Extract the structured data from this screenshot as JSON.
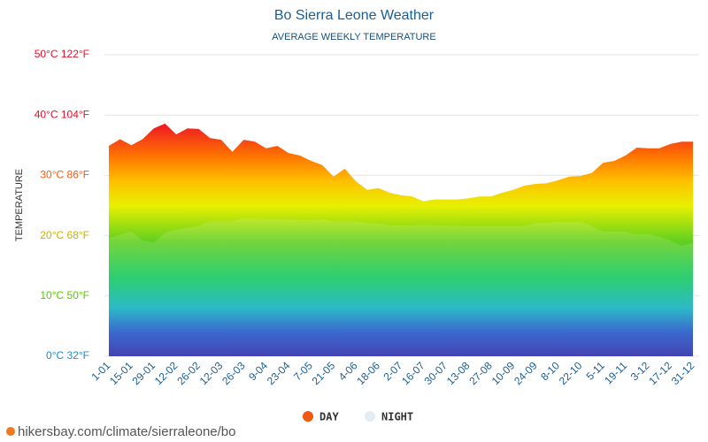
{
  "chart_data": {
    "type": "area",
    "title": "Bo Sierra Leone Weather",
    "subtitle": "AVERAGE WEEKLY TEMPERATURE",
    "y_label": "TEMPERATURE",
    "source": "hikersbay.com/climate/sierraleone/bo",
    "categories": [
      "1-01",
      null,
      "15-01",
      null,
      "29-01",
      null,
      "12-02",
      null,
      "26-02",
      null,
      "12-03",
      null,
      "26-03",
      null,
      "9-04",
      null,
      "23-04",
      null,
      "7-05",
      null,
      "21-05",
      null,
      "4-06",
      null,
      "18-06",
      null,
      "2-07",
      null,
      "16-07",
      null,
      "30-07",
      null,
      "13-08",
      null,
      "27-08",
      null,
      "10-09",
      null,
      "24-09",
      null,
      "8-10",
      null,
      "22-10",
      null,
      "5-11",
      null,
      "19-11",
      null,
      "3-12",
      null,
      "17-12",
      null,
      "31-12"
    ],
    "series": [
      {
        "name": "DAY",
        "color": "#f05a0f",
        "values": [
          34.9,
          36,
          35,
          36,
          37.8,
          38.6,
          36.8,
          37.8,
          37.7,
          36.2,
          35.9,
          33.9,
          35.9,
          35.6,
          34.5,
          34.9,
          33.7,
          33.3,
          32.4,
          31.7,
          29.8,
          31.1,
          29,
          27.6,
          27.9,
          27.1,
          26.7,
          26.5,
          25.7,
          26,
          26,
          26,
          26.2,
          26.5,
          26.5,
          27.1,
          27.6,
          28.3,
          28.6,
          28.7,
          29.2,
          29.8,
          29.9,
          30.4,
          32.1,
          32.4,
          33.3,
          34.6,
          34.5,
          34.5,
          35.2,
          35.6,
          35.6
        ]
      },
      {
        "name": "NIGHT",
        "color": "#e6edf2",
        "values": [
          19.5,
          20.2,
          20.7,
          19.2,
          18.8,
          20.5,
          21,
          21.3,
          21.6,
          22.4,
          22.4,
          22.4,
          22.9,
          22.9,
          22.7,
          22.7,
          22.7,
          22.6,
          22.6,
          22.7,
          22.4,
          22.4,
          22.4,
          22.1,
          22,
          21.7,
          21.7,
          21.7,
          21.8,
          21.7,
          21.7,
          21.6,
          21.6,
          21.6,
          21.6,
          21.6,
          21.6,
          21.6,
          22.1,
          22.1,
          22.3,
          22.3,
          22.3,
          21.6,
          20.7,
          20.7,
          20.7,
          20.2,
          20.3,
          19.8,
          19.2,
          18.3,
          18.8
        ]
      }
    ],
    "ylim": [
      0,
      50
    ],
    "yticks": [
      {
        "value": 0,
        "label": "0°C 32°F"
      },
      {
        "value": 10,
        "label": "10°C 50°F"
      },
      {
        "value": 20,
        "label": "20°C 68°F"
      },
      {
        "value": 30,
        "label": "30°C 86°F"
      },
      {
        "value": 40,
        "label": "40°C 104°F"
      },
      {
        "value": 50,
        "label": "50°C 122°F"
      }
    ],
    "ytick_colors": [
      "#1e8ad2",
      "#5bc800",
      "#c8b400",
      "#f05a0f",
      "#e0102a",
      "#e0102a"
    ],
    "grid": true
  }
}
